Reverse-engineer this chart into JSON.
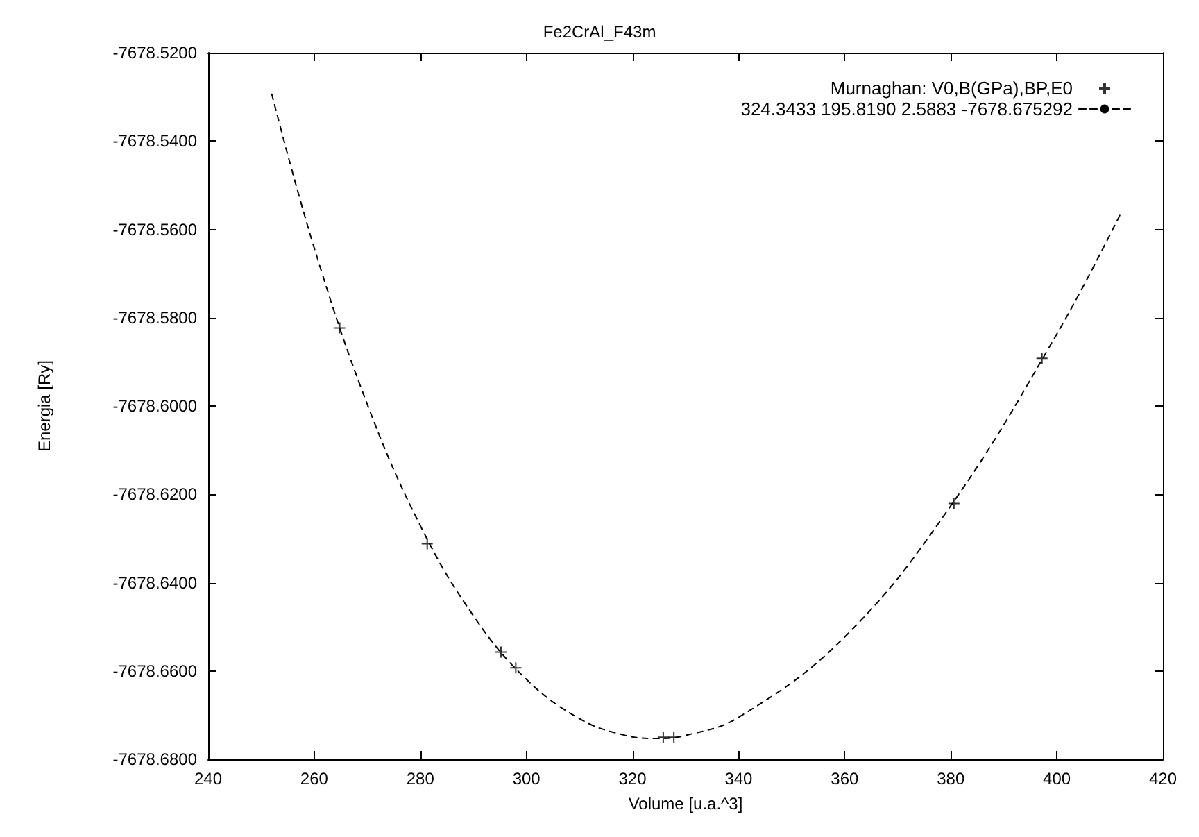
{
  "chart_data": {
    "type": "scatter",
    "title": "Fe2CrAl_F43m",
    "xlabel": "Volume [u.a.^3]",
    "ylabel": "Energia [Ry]",
    "xlim": [
      240,
      420
    ],
    "xticks": [
      240,
      260,
      280,
      300,
      320,
      340,
      360,
      380,
      400,
      420
    ],
    "ylim": [
      -7678.68,
      -7678.52
    ],
    "yticks": [
      {
        "value": -7678.68,
        "label": "-7678.6800"
      },
      {
        "value": -7678.66,
        "label": "-7678.6600"
      },
      {
        "value": -7678.64,
        "label": "-7678.6400"
      },
      {
        "value": -7678.62,
        "label": "-7678.6200"
      },
      {
        "value": -7678.6,
        "label": "-7678.6000"
      },
      {
        "value": -7678.58,
        "label": "-7678.5800"
      },
      {
        "value": -7678.56,
        "label": "-7678.5600"
      },
      {
        "value": -7678.54,
        "label": "-7678.5400"
      },
      {
        "value": -7678.52,
        "label": "-7678.5200"
      }
    ],
    "grid": false,
    "legend": "top right",
    "series": [
      {
        "name": "Murnaghan: V0,B(GPa),BP,E0",
        "marker": "cross",
        "color": "#000000",
        "x": [
          264.8,
          281.3,
          295.2,
          298.0,
          325.8,
          327.8,
          380.6,
          397.2
        ],
        "values": [
          -7678.5823,
          -7678.6312,
          -7678.6557,
          -7678.6593,
          -7678.675,
          -7678.675,
          -7678.6221,
          -7678.5892
        ]
      },
      {
        "name": "324.3433 195.8190 2.5883 -7678.675292",
        "type": "line",
        "marker": "none",
        "line_style": "dashed",
        "color": "#000000",
        "x": [
          252,
          260,
          270,
          280,
          290,
          300,
          310,
          318,
          324.34,
          330,
          340,
          360,
          380,
          400,
          412
        ],
        "values": [
          -7678.5294,
          -7678.5642,
          -7678.5996,
          -7678.6271,
          -7678.6475,
          -7678.6619,
          -7678.6708,
          -7678.6744,
          -7678.6753,
          -7678.6746,
          -7678.6705,
          -7678.6523,
          -7678.6226,
          -7678.5837,
          -7678.5565
        ]
      }
    ]
  }
}
